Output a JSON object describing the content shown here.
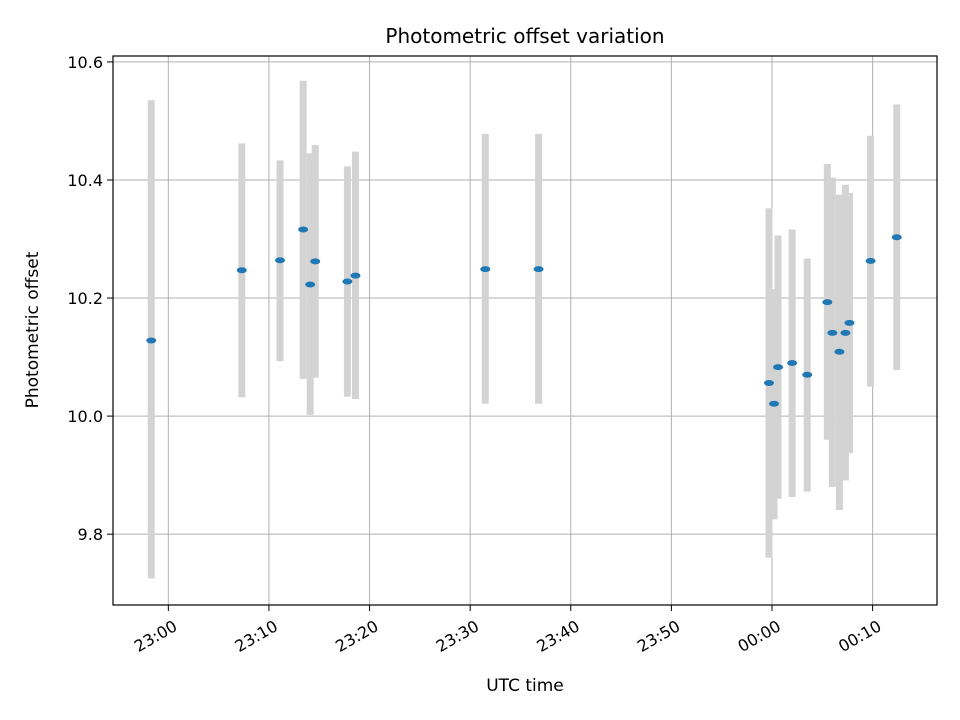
{
  "chart_data": {
    "type": "scatter",
    "title": "Photometric offset variation",
    "xlabel": "UTC time",
    "ylabel": "Photometric offset",
    "x_ticks": [
      "23:00",
      "23:10",
      "23:20",
      "23:30",
      "23:40",
      "23:50",
      "00:00",
      "00:10"
    ],
    "x_tick_times": [
      "23:00",
      "23:10",
      "23:20",
      "23:30",
      "23:40",
      "23:50",
      "00:00",
      "00:10"
    ],
    "y_ticks": [
      "9.8",
      "10.0",
      "10.2",
      "10.4",
      "10.6"
    ],
    "y_tick_values": [
      9.8,
      10.0,
      10.2,
      10.4,
      10.6
    ],
    "xlim": [
      "22:54.5",
      "00:16.4"
    ],
    "ylim": [
      9.68,
      10.61
    ],
    "grid": true,
    "marker_color": "#1f77b4",
    "errorbar_color": "#d3d3d3",
    "points": [
      {
        "x": "22:58.3",
        "y": 10.128,
        "ylo": 9.725,
        "yhi": 10.535
      },
      {
        "x": "23:07.3",
        "y": 10.247,
        "ylo": 10.032,
        "yhi": 10.462
      },
      {
        "x": "23:11.1",
        "y": 10.264,
        "ylo": 10.093,
        "yhi": 10.433
      },
      {
        "x": "23:13.4",
        "y": 10.316,
        "ylo": 10.063,
        "yhi": 10.568
      },
      {
        "x": "23:14.1",
        "y": 10.223,
        "ylo": 10.002,
        "yhi": 10.445
      },
      {
        "x": "23:14.6",
        "y": 10.262,
        "ylo": 10.065,
        "yhi": 10.459
      },
      {
        "x": "23:17.8",
        "y": 10.228,
        "ylo": 10.033,
        "yhi": 10.423
      },
      {
        "x": "23:18.6",
        "y": 10.238,
        "ylo": 10.029,
        "yhi": 10.448
      },
      {
        "x": "23:31.5",
        "y": 10.249,
        "ylo": 10.021,
        "yhi": 10.478
      },
      {
        "x": "23:36.8",
        "y": 10.249,
        "ylo": 10.021,
        "yhi": 10.478
      },
      {
        "x": "23:59.7",
        "y": 10.056,
        "ylo": 9.76,
        "yhi": 10.352
      },
      {
        "x": "00:00.2",
        "y": 10.021,
        "ylo": 9.825,
        "yhi": 10.215
      },
      {
        "x": "00:00.6",
        "y": 10.083,
        "ylo": 9.86,
        "yhi": 10.306
      },
      {
        "x": "00:02.0",
        "y": 10.09,
        "ylo": 9.863,
        "yhi": 10.316
      },
      {
        "x": "00:03.5",
        "y": 10.07,
        "ylo": 9.872,
        "yhi": 10.267
      },
      {
        "x": "00:05.5",
        "y": 10.193,
        "ylo": 9.96,
        "yhi": 10.427
      },
      {
        "x": "00:06.0",
        "y": 10.141,
        "ylo": 9.88,
        "yhi": 10.404
      },
      {
        "x": "00:06.7",
        "y": 10.109,
        "ylo": 9.841,
        "yhi": 10.375
      },
      {
        "x": "00:07.3",
        "y": 10.141,
        "ylo": 9.891,
        "yhi": 10.392
      },
      {
        "x": "00:07.7",
        "y": 10.158,
        "ylo": 9.937,
        "yhi": 10.378
      },
      {
        "x": "00:09.8",
        "y": 10.263,
        "ylo": 10.05,
        "yhi": 10.475
      },
      {
        "x": "00:12.4",
        "y": 10.303,
        "ylo": 10.078,
        "yhi": 10.528
      }
    ]
  }
}
